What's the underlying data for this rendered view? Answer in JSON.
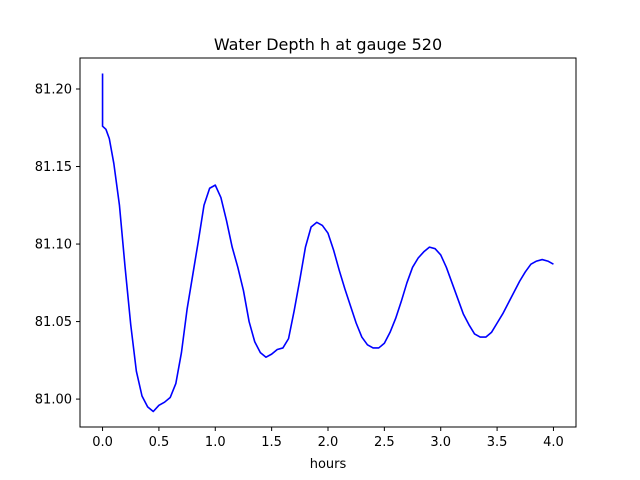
{
  "chart_data": {
    "type": "line",
    "title": "Water Depth h at gauge 520",
    "xlabel": "hours",
    "ylabel": "",
    "xlim": [
      -0.2,
      4.2
    ],
    "ylim": [
      80.982,
      81.22
    ],
    "xticks": [
      0.0,
      0.5,
      1.0,
      1.5,
      2.0,
      2.5,
      3.0,
      3.5,
      4.0
    ],
    "xtick_labels": [
      "0.0",
      "0.5",
      "1.0",
      "1.5",
      "2.0",
      "2.5",
      "3.0",
      "3.5",
      "4.0"
    ],
    "yticks": [
      81.0,
      81.05,
      81.1,
      81.15,
      81.2
    ],
    "ytick_labels": [
      "81.00",
      "81.05",
      "81.10",
      "81.15",
      "81.20"
    ],
    "grid": false,
    "series": [
      {
        "color": "#0000ff",
        "x": [
          0.0,
          0.0,
          0.0,
          0.03,
          0.06,
          0.1,
          0.15,
          0.2,
          0.25,
          0.3,
          0.35,
          0.4,
          0.45,
          0.5,
          0.55,
          0.6,
          0.65,
          0.7,
          0.75,
          0.8,
          0.85,
          0.9,
          0.95,
          1.0,
          1.05,
          1.1,
          1.15,
          1.2,
          1.25,
          1.3,
          1.35,
          1.4,
          1.45,
          1.5,
          1.55,
          1.6,
          1.65,
          1.7,
          1.75,
          1.8,
          1.85,
          1.9,
          1.95,
          2.0,
          2.05,
          2.1,
          2.15,
          2.2,
          2.25,
          2.3,
          2.35,
          2.4,
          2.45,
          2.5,
          2.55,
          2.6,
          2.65,
          2.7,
          2.75,
          2.8,
          2.85,
          2.9,
          2.95,
          3.0,
          3.05,
          3.1,
          3.15,
          3.2,
          3.25,
          3.3,
          3.35,
          3.4,
          3.45,
          3.5,
          3.55,
          3.6,
          3.65,
          3.7,
          3.75,
          3.8,
          3.85,
          3.9,
          3.95,
          4.0
        ],
        "y": [
          81.21,
          81.176,
          81.176,
          81.174,
          81.168,
          81.152,
          81.125,
          81.085,
          81.048,
          81.018,
          81.002,
          80.995,
          80.992,
          80.996,
          80.998,
          81.001,
          81.01,
          81.03,
          81.058,
          81.08,
          81.102,
          81.125,
          81.136,
          81.138,
          81.13,
          81.115,
          81.098,
          81.085,
          81.07,
          81.05,
          81.037,
          81.03,
          81.027,
          81.029,
          81.032,
          81.033,
          81.039,
          81.057,
          81.077,
          81.098,
          81.111,
          81.114,
          81.112,
          81.107,
          81.096,
          81.083,
          81.071,
          81.06,
          81.049,
          81.04,
          81.035,
          81.033,
          81.033,
          81.036,
          81.043,
          81.052,
          81.063,
          81.075,
          81.085,
          81.091,
          81.095,
          81.098,
          81.097,
          81.093,
          81.085,
          81.075,
          81.065,
          81.055,
          81.048,
          81.042,
          81.04,
          81.04,
          81.043,
          81.049,
          81.055,
          81.062,
          81.069,
          81.076,
          81.082,
          81.087,
          81.089,
          81.09,
          81.089,
          81.087
        ]
      }
    ]
  }
}
